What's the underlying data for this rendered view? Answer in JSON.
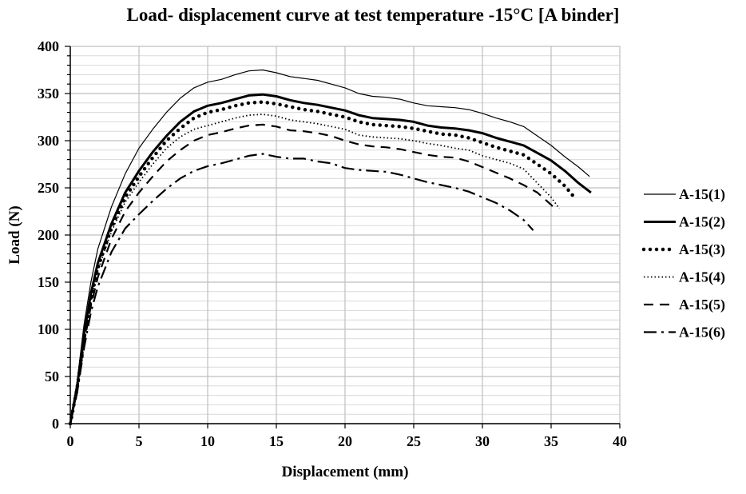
{
  "chart_data": {
    "type": "line",
    "title": "Load- displacement  curve at test temperature -15°C [A binder]",
    "xlabel": "Displacement (mm)",
    "ylabel": "Load (N)",
    "xlim": [
      0,
      40
    ],
    "ylim": [
      0,
      400
    ],
    "xticks": [
      0,
      5,
      10,
      15,
      20,
      25,
      30,
      35,
      40
    ],
    "yticks": [
      0,
      50,
      100,
      150,
      200,
      250,
      300,
      350,
      400
    ],
    "grid": {
      "major": true,
      "minor_horizontal": true
    },
    "legend_position": "right",
    "series": [
      {
        "name": "A-15(1)",
        "line_style": "thin-solid",
        "x": [
          0,
          0.5,
          1,
          1.5,
          2,
          3,
          4,
          5,
          6,
          7,
          8,
          9,
          10,
          11,
          12,
          13,
          14,
          15,
          16,
          17,
          18,
          19,
          20,
          21,
          22,
          23,
          24,
          25,
          26,
          27,
          28,
          29,
          30,
          31,
          32,
          33,
          34,
          35,
          36,
          37,
          37.8
        ],
        "y": [
          0,
          45,
          105,
          150,
          185,
          230,
          265,
          292,
          312,
          330,
          345,
          356,
          362,
          365,
          370,
          374,
          375,
          372,
          368,
          366,
          364,
          360,
          356,
          350,
          347,
          346,
          344,
          340,
          337,
          336,
          335,
          333,
          329,
          324,
          320,
          315,
          305,
          295,
          283,
          272,
          262
        ]
      },
      {
        "name": "A-15(2)",
        "line_style": "thick-solid",
        "x": [
          0,
          0.5,
          1,
          1.5,
          2,
          3,
          4,
          5,
          6,
          7,
          8,
          9,
          10,
          11,
          12,
          13,
          14,
          15,
          16,
          17,
          18,
          19,
          20,
          21,
          22,
          23,
          24,
          25,
          26,
          27,
          28,
          29,
          30,
          31,
          32,
          33,
          34,
          35,
          36,
          37,
          37.9
        ],
        "y": [
          0,
          40,
          95,
          138,
          170,
          212,
          245,
          268,
          288,
          305,
          320,
          331,
          337,
          340,
          344,
          348,
          349,
          347,
          343,
          340,
          338,
          335,
          332,
          327,
          324,
          323,
          322,
          320,
          316,
          314,
          313,
          311,
          308,
          303,
          299,
          295,
          287,
          279,
          268,
          255,
          245
        ]
      },
      {
        "name": "A-15(3)",
        "line_style": "round-dots",
        "x": [
          0,
          0.5,
          1,
          1.5,
          2,
          3,
          4,
          5,
          6,
          7,
          8,
          9,
          10,
          11,
          12,
          13,
          14,
          15,
          16,
          17,
          18,
          19,
          20,
          21,
          22,
          23,
          24,
          25,
          26,
          27,
          28,
          29,
          30,
          31,
          32,
          33,
          34,
          35,
          36,
          36.8
        ],
        "y": [
          0,
          38,
          90,
          132,
          165,
          208,
          240,
          262,
          282,
          300,
          313,
          324,
          330,
          333,
          337,
          340,
          341,
          339,
          336,
          333,
          331,
          328,
          325,
          320,
          317,
          316,
          315,
          313,
          310,
          307,
          306,
          303,
          298,
          293,
          289,
          285,
          275,
          265,
          252,
          238
        ]
      },
      {
        "name": "A-15(4)",
        "line_style": "small-dots",
        "x": [
          0,
          0.5,
          1,
          1.5,
          2,
          3,
          4,
          5,
          6,
          7,
          8,
          9,
          10,
          11,
          12,
          13,
          14,
          15,
          16,
          17,
          18,
          19,
          20,
          21,
          22,
          23,
          24,
          25,
          26,
          27,
          28,
          29,
          30,
          31,
          32,
          33,
          34,
          35,
          35.6
        ],
        "y": [
          0,
          37,
          88,
          130,
          162,
          204,
          235,
          256,
          275,
          292,
          304,
          312,
          316,
          320,
          324,
          327,
          328,
          326,
          322,
          320,
          318,
          315,
          312,
          306,
          304,
          303,
          302,
          300,
          297,
          295,
          292,
          290,
          284,
          280,
          276,
          270,
          255,
          240,
          228
        ]
      },
      {
        "name": "A-15(5)",
        "line_style": "dashed",
        "x": [
          0,
          0.5,
          1,
          1.5,
          2,
          3,
          4,
          5,
          6,
          7,
          8,
          9,
          10,
          11,
          12,
          13,
          14,
          15,
          16,
          17,
          18,
          19,
          20,
          21,
          22,
          23,
          24,
          25,
          26,
          27,
          28,
          29,
          30,
          31,
          32,
          33,
          34,
          35,
          35.4
        ],
        "y": [
          0,
          35,
          85,
          125,
          155,
          196,
          225,
          245,
          262,
          278,
          290,
          300,
          306,
          309,
          313,
          316,
          317,
          315,
          311,
          310,
          308,
          305,
          300,
          296,
          294,
          293,
          291,
          288,
          285,
          283,
          282,
          278,
          272,
          266,
          260,
          253,
          245,
          232,
          226
        ]
      },
      {
        "name": "A-15(6)",
        "line_style": "dash-dot",
        "x": [
          0,
          0.5,
          1,
          1.5,
          2,
          3,
          4,
          5,
          6,
          7,
          8,
          9,
          10,
          11,
          12,
          13,
          14,
          15,
          16,
          17,
          18,
          19,
          20,
          21,
          22,
          23,
          24,
          25,
          26,
          27,
          28,
          29,
          30,
          31,
          32,
          33,
          33.7
        ],
        "y": [
          0,
          33,
          80,
          118,
          145,
          182,
          207,
          222,
          236,
          249,
          260,
          268,
          273,
          276,
          280,
          284,
          286,
          283,
          281,
          281,
          278,
          276,
          271,
          269,
          268,
          267,
          264,
          260,
          256,
          253,
          250,
          246,
          240,
          234,
          226,
          216,
          205
        ]
      }
    ]
  }
}
